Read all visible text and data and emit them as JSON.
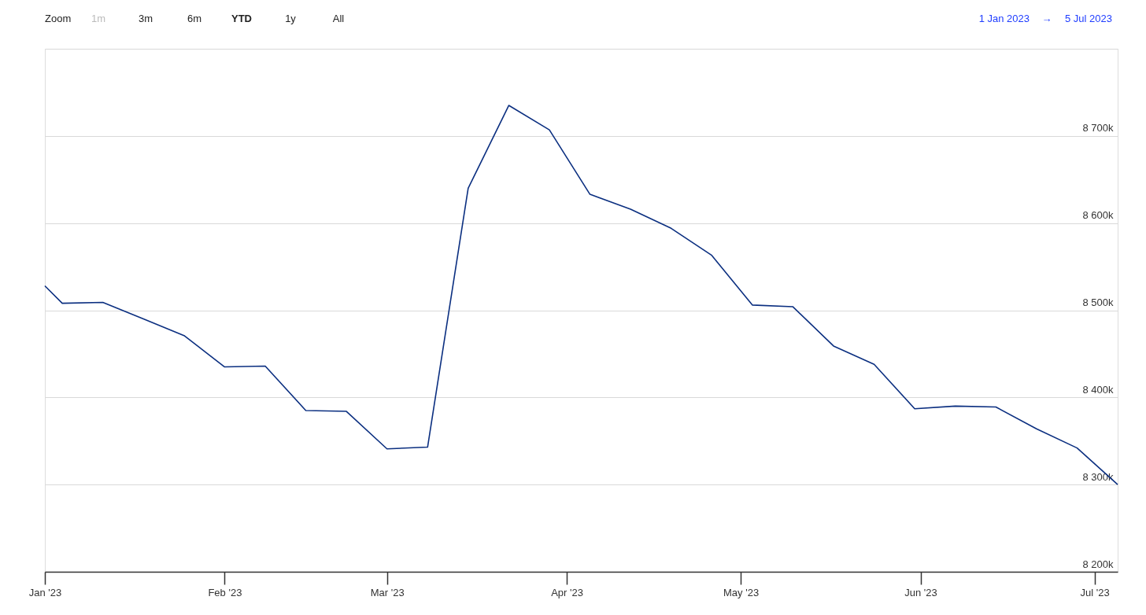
{
  "chart_data": {
    "type": "line",
    "x": [
      "2023-01-01",
      "2023-01-04",
      "2023-01-11",
      "2023-01-18",
      "2023-01-25",
      "2023-02-01",
      "2023-02-08",
      "2023-02-15",
      "2023-02-22",
      "2023-03-01",
      "2023-03-08",
      "2023-03-15",
      "2023-03-22",
      "2023-03-29",
      "2023-04-05",
      "2023-04-12",
      "2023-04-19",
      "2023-04-26",
      "2023-05-03",
      "2023-05-10",
      "2023-05-17",
      "2023-05-24",
      "2023-05-31",
      "2023-06-07",
      "2023-06-14",
      "2023-06-21",
      "2023-06-28",
      "2023-07-05"
    ],
    "series": [
      {
        "color": "#0b2f80",
        "values": [
          8528000,
          8508000,
          8509000,
          8490000,
          8471000,
          8435000,
          8436000,
          8385000,
          8384000,
          8341000,
          8343000,
          8640000,
          8735000,
          8707000,
          8633000,
          8616000,
          8594000,
          8563000,
          8506000,
          8504000,
          8459000,
          8438000,
          8387000,
          8390000,
          8389000,
          8364000,
          8342000,
          8300000
        ]
      }
    ],
    "xlim": [
      "2023-01-01",
      "2023-07-05"
    ],
    "xticks": [
      {
        "value": "2023-01-01",
        "label": "Jan '23"
      },
      {
        "value": "2023-02-01",
        "label": "Feb '23"
      },
      {
        "value": "2023-03-01",
        "label": "Mar '23"
      },
      {
        "value": "2023-04-01",
        "label": "Apr '23"
      },
      {
        "value": "2023-05-01",
        "label": "May '23"
      },
      {
        "value": "2023-06-01",
        "label": "Jun '23"
      },
      {
        "value": "2023-07-01",
        "label": "Jul '23"
      }
    ],
    "ylim": [
      8200000,
      8800000
    ],
    "yticks": [
      {
        "value": 8200000,
        "label": "8 200k"
      },
      {
        "value": 8300000,
        "label": "8 300k"
      },
      {
        "value": 8400000,
        "label": "8 400k"
      },
      {
        "value": 8500000,
        "label": "8 500k"
      },
      {
        "value": 8600000,
        "label": "8 600k"
      },
      {
        "value": 8700000,
        "label": "8 700k"
      },
      {
        "value": 8800000,
        "label": null
      }
    ],
    "grid": "y",
    "legend": false,
    "marker": "none",
    "line_style": "solid",
    "annotations": [
      "Zoom",
      "1m",
      "3m",
      "6m",
      "YTD",
      "1y",
      "All",
      "1 Jan 2023",
      "→",
      "5 Jul 2023"
    ]
  }
}
